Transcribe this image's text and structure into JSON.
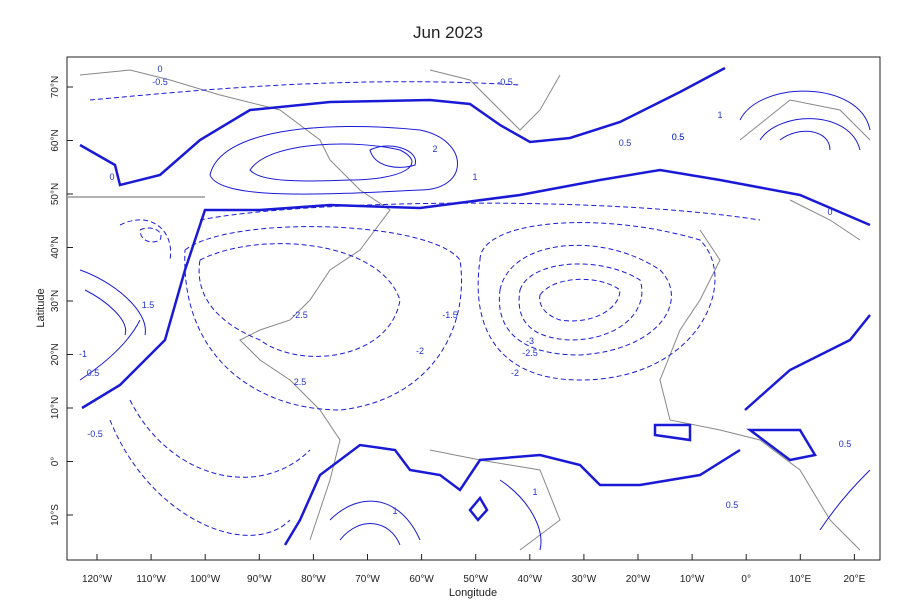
{
  "map": {
    "title": "Jun 2023",
    "x_label": "Longitude",
    "y_label": "Latitude",
    "lon_ticks": [
      "120°W",
      "110°W",
      "100°W",
      "90°W",
      "80°W",
      "70°W",
      "60°W",
      "50°W",
      "40°W",
      "30°W",
      "20°W",
      "10°W",
      "0°",
      "10°E",
      "20°E"
    ],
    "lat_ticks": [
      "70°N",
      "60°N",
      "50°N",
      "40°N",
      "30°N",
      "20°N",
      "10°N",
      "0°",
      "10°S"
    ],
    "contour_labels": [
      "0",
      "-0.5",
      "-0.5",
      "0",
      "2",
      "1",
      "0.5",
      "0.5",
      "1",
      "0",
      "1.5",
      "-1",
      "0.5",
      "-0.5",
      "-2.5",
      "2.5",
      "-2",
      "-1.5",
      "-3",
      "-2.5",
      "-2",
      "0.5",
      "1",
      "1",
      "0.5",
      "0.5"
    ]
  }
}
